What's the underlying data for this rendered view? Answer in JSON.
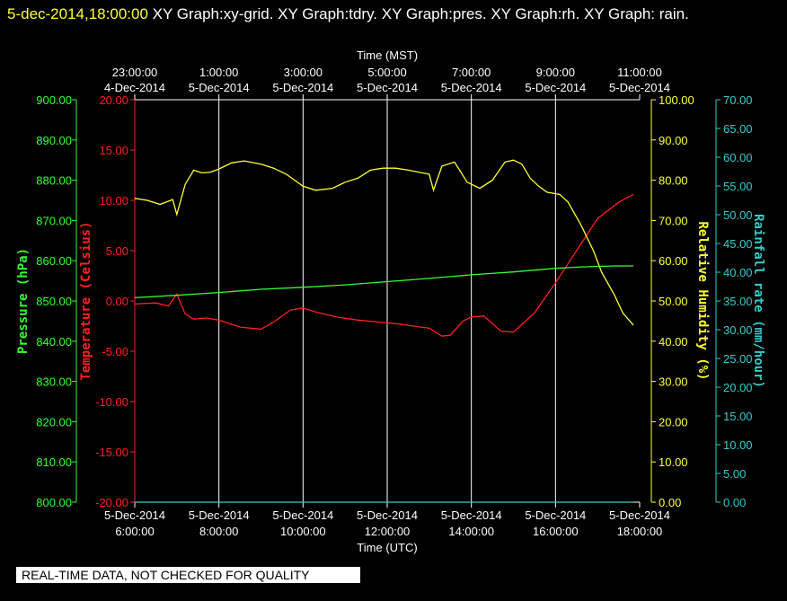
{
  "header": {
    "timestamp": "5-dec-2014,18:00:00",
    "graphs": "XY Graph:xy-grid.  XY Graph:tdry.  XY Graph:pres.  XY Graph:rh.  XY Graph: rain."
  },
  "disclaimer": "REAL-TIME DATA, NOT CHECKED FOR QUALITY",
  "colors": {
    "background": "#000000",
    "grid": "#ffffff",
    "temperature": "#ff2020",
    "pressure": "#33ff33",
    "humidity": "#ffff33",
    "rainfall": "#33cccc"
  },
  "chart_data": {
    "type": "line",
    "top_axis_title": "Time (MST)",
    "bottom_axis_title": "Time (UTC)",
    "bottom_ticks": [
      {
        "date": "5-Dec-2014",
        "time": "6:00:00"
      },
      {
        "date": "5-Dec-2014",
        "time": "8:00:00"
      },
      {
        "date": "5-Dec-2014",
        "time": "10:00:00"
      },
      {
        "date": "5-Dec-2014",
        "time": "12:00:00"
      },
      {
        "date": "5-Dec-2014",
        "time": "14:00:00"
      },
      {
        "date": "5-Dec-2014",
        "time": "16:00:00"
      },
      {
        "date": "5-Dec-2014",
        "time": "18:00:00"
      }
    ],
    "top_ticks": [
      {
        "time": "23:00:00",
        "date": "4-Dec-2014"
      },
      {
        "time": "1:00:00",
        "date": "5-Dec-2014"
      },
      {
        "time": "3:00:00",
        "date": "5-Dec-2014"
      },
      {
        "time": "5:00:00",
        "date": "5-Dec-2014"
      },
      {
        "time": "7:00:00",
        "date": "5-Dec-2014"
      },
      {
        "time": "9:00:00",
        "date": "5-Dec-2014"
      },
      {
        "time": "11:00:00",
        "date": "5-Dec-2014"
      }
    ],
    "x_range_utc_hours": [
      6,
      18
    ],
    "grid": true,
    "axes": {
      "pressure": {
        "label": "Pressure (hPa)",
        "range": [
          800,
          900
        ],
        "ticks": [
          "800.00",
          "810.00",
          "820.00",
          "830.00",
          "840.00",
          "850.00",
          "860.00",
          "870.00",
          "880.00",
          "890.00",
          "900.00"
        ]
      },
      "temperature": {
        "label": "Temperature (Celsius)",
        "range": [
          -20,
          20
        ],
        "ticks": [
          "-20.00",
          "-15.00",
          "-10.00",
          "-5.00",
          "0.00",
          "5.00",
          "10.00",
          "15.00",
          "20.00"
        ]
      },
      "humidity": {
        "label": "Relative Humidity (%)",
        "range": [
          0,
          100
        ],
        "ticks": [
          "0.00",
          "10.00",
          "20.00",
          "30.00",
          "40.00",
          "50.00",
          "60.00",
          "70.00",
          "80.00",
          "90.00",
          "100.00"
        ]
      },
      "rainfall": {
        "label": "Rainfall rate (mm/hour)",
        "range": [
          0,
          70
        ],
        "ticks": [
          "0.00",
          "5.00",
          "10.00",
          "15.00",
          "20.00",
          "25.00",
          "30.00",
          "35.00",
          "40.00",
          "45.00",
          "50.00",
          "55.00",
          "60.00",
          "65.00",
          "70.00"
        ]
      }
    },
    "series": [
      {
        "key": "temperature",
        "axis": "temperature",
        "x": [
          6.0,
          6.5,
          6.8,
          7.0,
          7.2,
          7.4,
          7.7,
          8.0,
          8.5,
          9.0,
          9.3,
          9.7,
          10.0,
          10.3,
          10.8,
          11.3,
          11.8,
          12.3,
          12.8,
          13.0,
          13.3,
          13.5,
          13.8,
          14.0,
          14.3,
          14.7,
          15.0,
          15.5,
          16.0,
          16.5,
          17.0,
          17.5,
          17.85
        ],
        "y": [
          -0.3,
          -0.2,
          -0.5,
          0.7,
          -1.3,
          -1.8,
          -1.7,
          -1.9,
          -2.6,
          -2.8,
          -2.1,
          -0.9,
          -0.7,
          -1.1,
          -1.6,
          -1.9,
          -2.1,
          -2.3,
          -2.6,
          -2.7,
          -3.5,
          -3.4,
          -2.0,
          -1.6,
          -1.5,
          -3.0,
          -3.1,
          -1.2,
          1.8,
          5.0,
          8.2,
          9.8,
          10.6
        ]
      },
      {
        "key": "pressure",
        "axis": "pressure",
        "x": [
          6.0,
          7.0,
          8.0,
          9.0,
          10.0,
          11.0,
          12.0,
          13.0,
          14.0,
          15.0,
          16.0,
          16.5,
          17.0,
          17.5,
          17.85
        ],
        "y": [
          850.8,
          851.4,
          852.1,
          852.9,
          853.4,
          854.0,
          854.8,
          855.6,
          856.5,
          857.2,
          858.1,
          858.4,
          858.6,
          858.7,
          858.7
        ]
      },
      {
        "key": "humidity",
        "axis": "humidity",
        "x": [
          6.0,
          6.3,
          6.6,
          6.9,
          7.0,
          7.2,
          7.4,
          7.6,
          7.8,
          8.0,
          8.3,
          8.6,
          9.0,
          9.3,
          9.6,
          10.0,
          10.3,
          10.7,
          11.0,
          11.3,
          11.6,
          11.9,
          12.2,
          12.5,
          13.0,
          13.1,
          13.3,
          13.6,
          13.9,
          14.2,
          14.5,
          14.8,
          15.0,
          15.2,
          15.4,
          15.6,
          15.8,
          16.1,
          16.3,
          16.6,
          16.9,
          17.1,
          17.4,
          17.6,
          17.85
        ],
        "y": [
          75.5,
          75.0,
          74.0,
          75.2,
          71.5,
          79.0,
          82.5,
          81.8,
          82.0,
          82.8,
          84.3,
          84.8,
          84.0,
          83.0,
          81.5,
          78.5,
          77.5,
          78.0,
          79.5,
          80.5,
          82.5,
          83.0,
          83.0,
          82.5,
          81.5,
          77.5,
          83.5,
          84.5,
          79.5,
          78.0,
          80.0,
          84.5,
          85.0,
          84.0,
          80.5,
          78.5,
          77.0,
          76.5,
          74.5,
          69.0,
          62.5,
          57.0,
          51.5,
          47.0,
          44.0
        ]
      },
      {
        "key": "rainfall",
        "axis": "rainfall",
        "x": [
          6.0,
          17.85
        ],
        "y": [
          0,
          0
        ]
      }
    ]
  }
}
